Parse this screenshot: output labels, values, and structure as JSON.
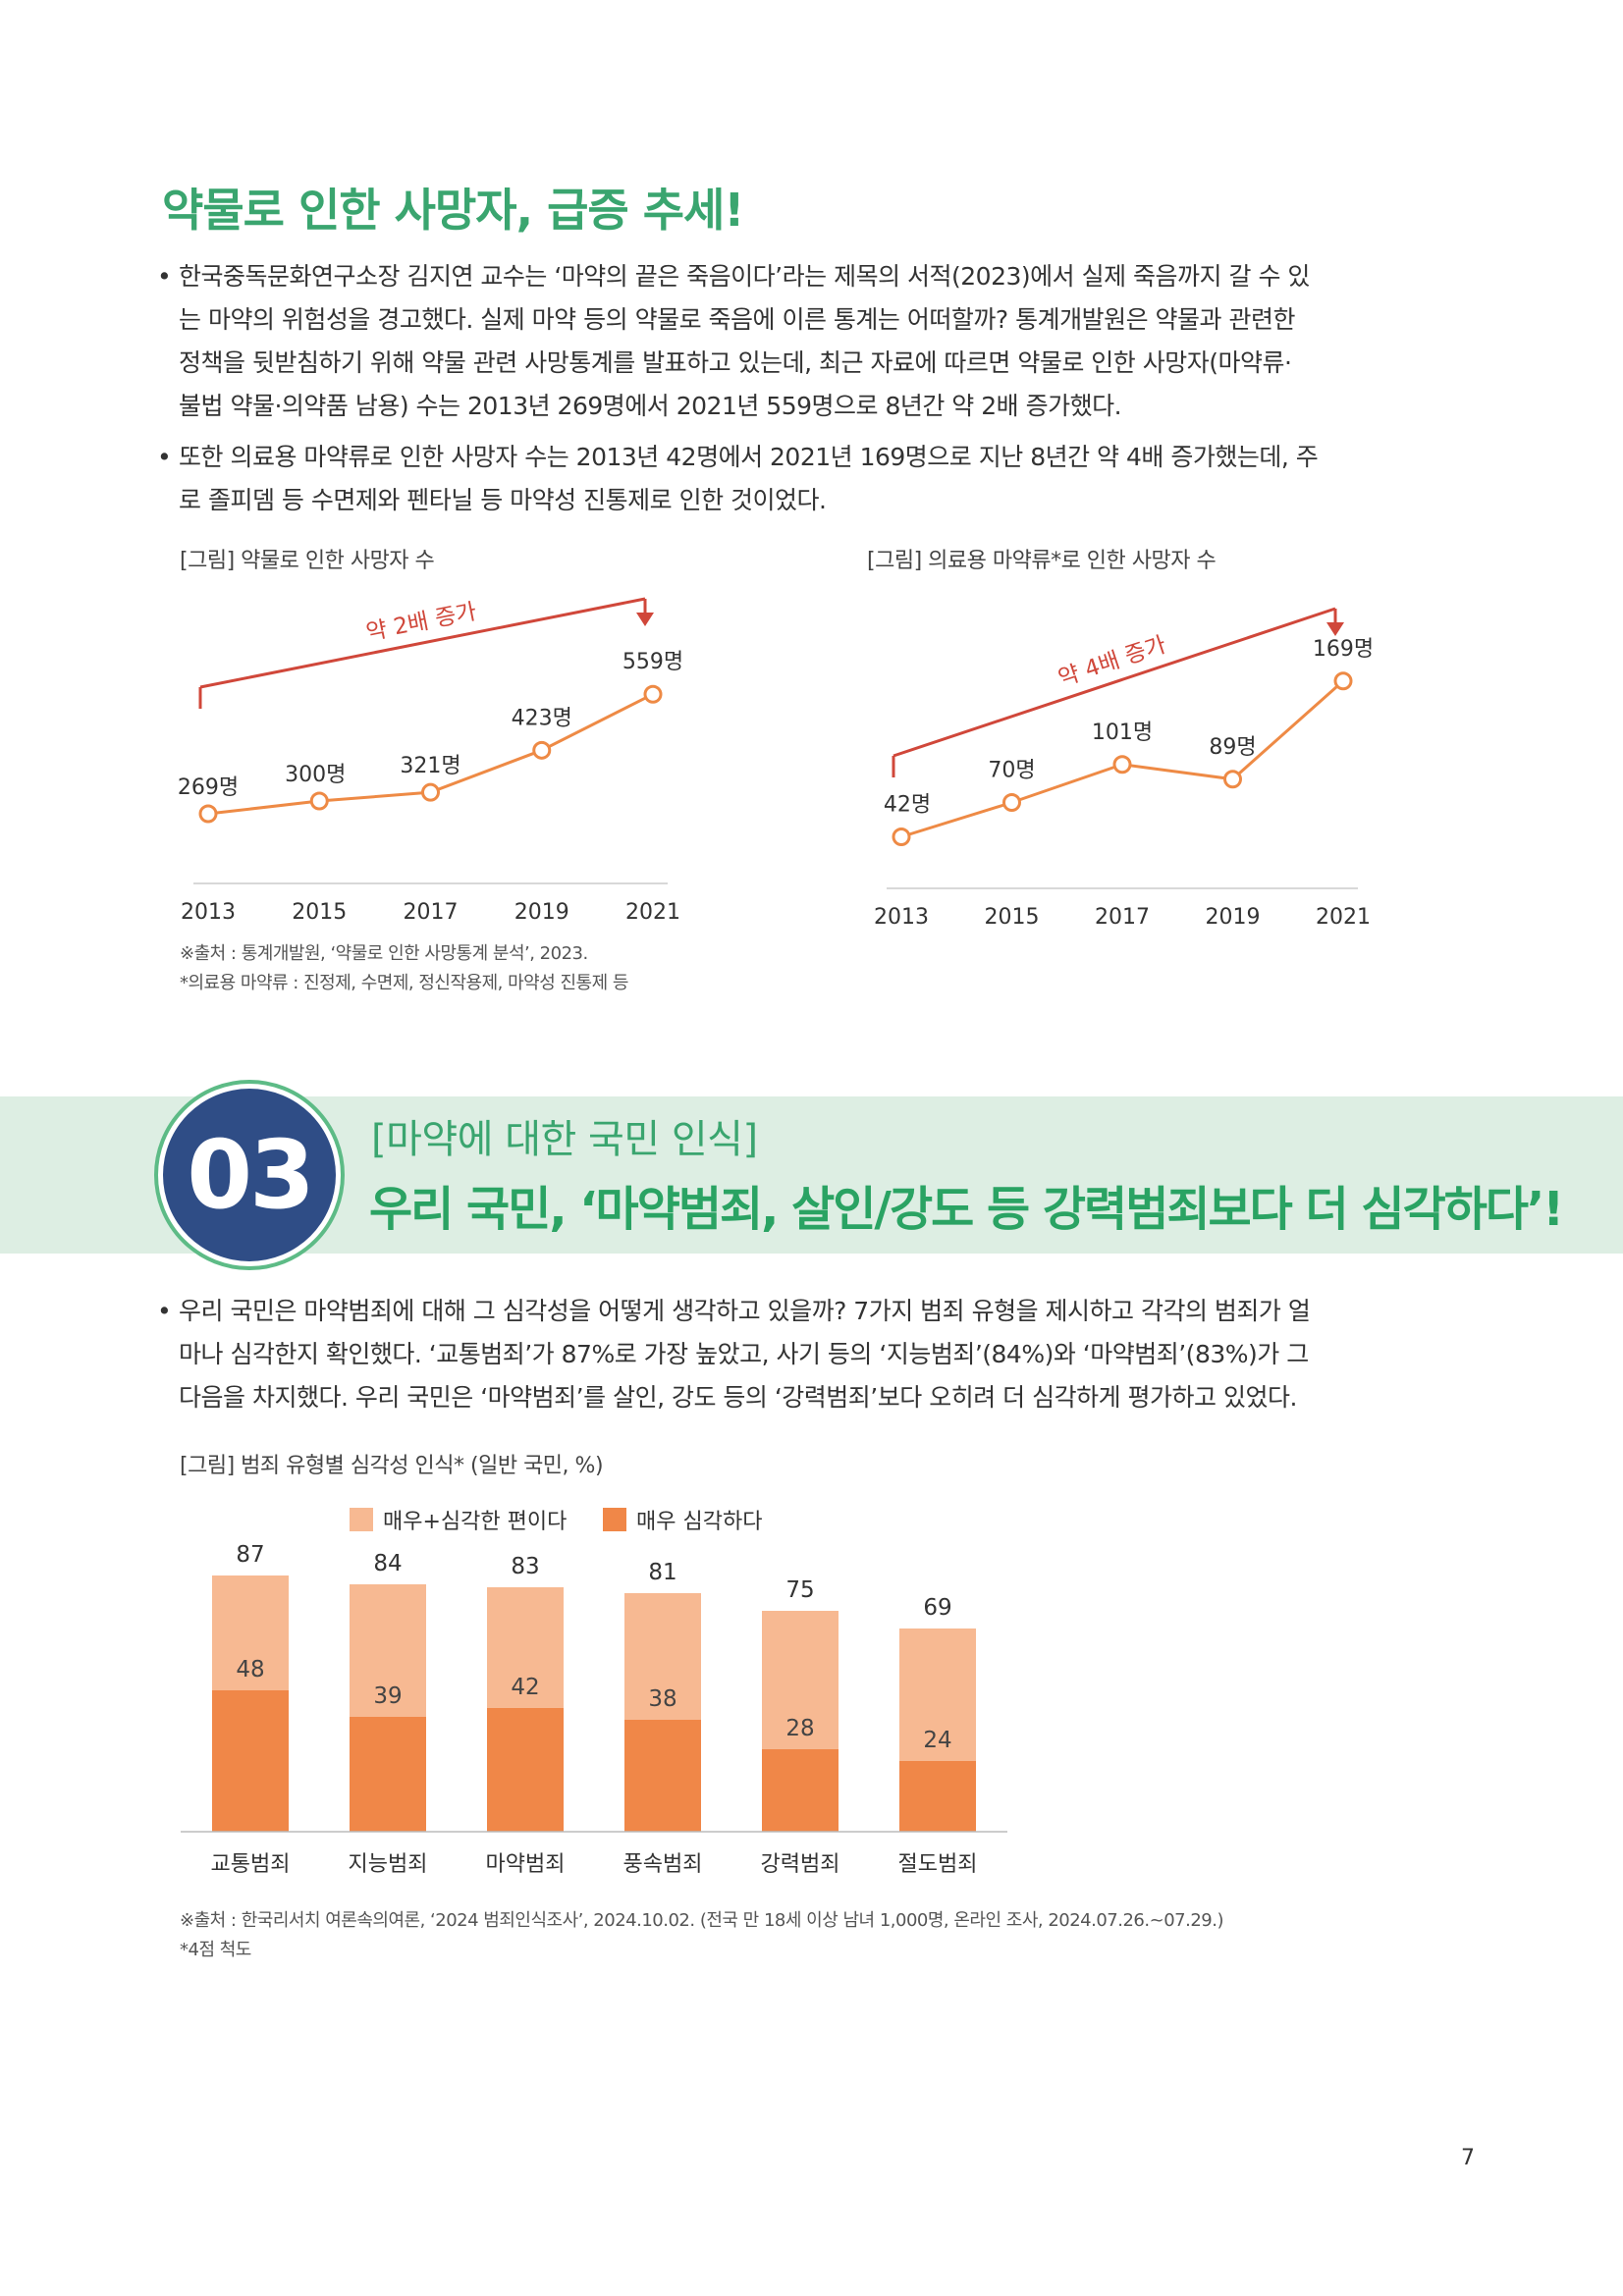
{
  "section1": {
    "heading": "약물로 인한 사망자, 급증 추세!",
    "bullet1_lines": [
      "한국중독문화연구소장 김지연 교수는 ‘마약의 끝은 죽음이다’라는 제목의 서적(2023)에서 실제 죽음까지 갈 수 있",
      "는 마약의 위험성을 경고했다. 실제 마약 등의 약물로 죽음에 이른 통계는 어떠할까? 통계개발원은 약물과 관련한",
      "정책을 뒷받침하기 위해 약물 관련 사망통계를 발표하고 있는데, 최근 자료에 따르면 약물로 인한 사망자(마약류·",
      "불법 약물·의약품 남용) 수는 2013년 269명에서 2021년 559명으로 8년간 약 2배 증가했다."
    ],
    "bullet2_lines": [
      "또한 의료용 마약류로 인한 사망자 수는 2013년 42명에서 2021년 169명으로 지난 8년간 약 4배 증가했는데, 주",
      "로 졸피뎀 등 수면제와 펜타닐 등 마약성 진통제로 인한 것이었다."
    ],
    "notes": [
      "※출처 : 통계개발원, ‘약물로 인한 사망통계 분석’, 2023.",
      "*의료용 마약류 : 진정제, 수면제, 정신작용제, 마약성 진통제 등"
    ]
  },
  "section3": {
    "number": "03",
    "subtitle": "[마약에 대한 국민 인식]",
    "title": "우리 국민, ‘마약범죄, 살인/강도 등 강력범죄보다 더 심각하다’!",
    "bullet_lines": [
      "우리 국민은 마약범죄에 대해 그 심각성을 어떻게 생각하고 있을까? 7가지 범죄 유형을 제시하고 각각의 범죄가 얼",
      "마나 심각한지 확인했다. ‘교통범죄’가 87%로 가장 높았고, 사기 등의 ‘지능범죄’(84%)와 ‘마약범죄’(83%)가 그",
      "다음을 차지했다. 우리 국민은 ‘마약범죄’를 살인, 강도 등의 ‘강력범죄’보다 오히려 더 심각하게 평가하고 있었다."
    ],
    "notes": [
      "※출처 : 한국리서치 여론속의여론, ‘2024 범죄인식조사’, 2024.10.02. (전국 만 18세 이상 남녀 1,000명, 온라인 조사, 2024.07.26.~07.29.)",
      "*4점 척도"
    ]
  },
  "page_number": "7",
  "colors": {
    "green": "#3aa56f",
    "navy": "#2f4d86",
    "orange_line": "#ee8a45",
    "red_arrow": "#d0473a",
    "bar_light": "#f7b992",
    "bar_dark": "#f08748"
  },
  "chart_data": [
    {
      "type": "line",
      "title": "[그림] 약물로 인한 사망자 수",
      "x": [
        "2013",
        "2015",
        "2017",
        "2019",
        "2021"
      ],
      "values": [
        269,
        300,
        321,
        423,
        559
      ],
      "labels": [
        "269명",
        "300명",
        "321명",
        "423명",
        "559명"
      ],
      "annotation": "약 2배 증가",
      "ylim": [
        200,
        600
      ]
    },
    {
      "type": "line",
      "title": "[그림] 의료용 마약류*로 인한 사망자 수",
      "x": [
        "2013",
        "2015",
        "2017",
        "2019",
        "2021"
      ],
      "values": [
        42,
        70,
        101,
        89,
        169
      ],
      "labels": [
        "42명",
        "70명",
        "101명",
        "89명",
        "169명"
      ],
      "annotation": "약 4배 증가",
      "ylim": [
        20,
        180
      ]
    },
    {
      "type": "bar",
      "title": "[그림] 범죄 유형별 심각성 인식* (일반 국민, %)",
      "categories": [
        "교통범죄",
        "지능범죄",
        "마약범죄",
        "풍속범죄",
        "강력범죄",
        "절도범죄"
      ],
      "series": [
        {
          "name": "매우+심각한 편이다",
          "values": [
            87,
            84,
            83,
            81,
            75,
            69
          ]
        },
        {
          "name": "매우 심각하다",
          "values": [
            48,
            39,
            42,
            38,
            28,
            24
          ]
        }
      ],
      "ylim": [
        0,
        100
      ]
    }
  ]
}
